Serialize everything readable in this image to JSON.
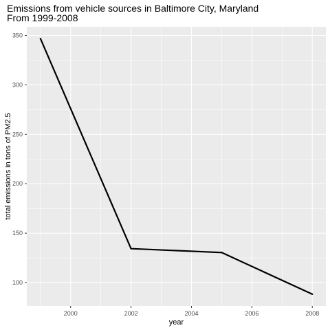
{
  "chart_data": {
    "type": "line",
    "title": "Emissions from vehicle sources in Baltimore City, Maryland",
    "subtitle": "From 1999-2008",
    "xlabel": "year",
    "ylabel": "total emissions in tons of PM2.5",
    "x": [
      1999,
      2002,
      2005,
      2008
    ],
    "values": [
      346.8,
      134.3,
      130.4,
      88.3
    ],
    "xlim": [
      1998.55,
      2008.45
    ],
    "ylim": [
      76.4,
      358.7
    ],
    "x_ticks": [
      2000,
      2002,
      2004,
      2006,
      2008
    ],
    "x_tick_labels": [
      "2000",
      "2002",
      "2004",
      "2006",
      "2008"
    ],
    "y_ticks": [
      100,
      150,
      200,
      250,
      300,
      350
    ],
    "y_tick_labels": [
      "100",
      "150",
      "200",
      "250",
      "300",
      "350"
    ],
    "grid": true,
    "panel_background": "#ebebeb",
    "grid_color": "#ffffff",
    "line_color": "#000000"
  }
}
